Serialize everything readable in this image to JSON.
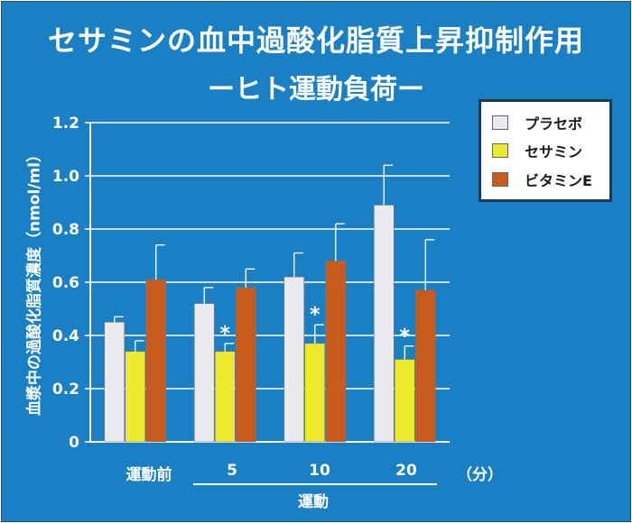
{
  "title_line1": "セサミンの血中過酸化脂質上昇抑制作用",
  "title_line2": "ーヒト運動負荷ー",
  "colors": {
    "background": "#1b7fc4",
    "placebo": "#e9e9ee",
    "sesamin": "#eeea30",
    "vitamin_e": "#c85a1e"
  },
  "chart_data": {
    "type": "bar",
    "ylabel": "血漿中の過酸化脂質濃度（nmol/ml）",
    "xlabel_unit": "（分）",
    "x_group_label": "運動",
    "categories": [
      "運動前",
      "5",
      "10",
      "20"
    ],
    "ylim": [
      0,
      1.2
    ],
    "yticks": [
      "0",
      "0.2",
      "0.4",
      "0.6",
      "0.8",
      "1.0",
      "1.2"
    ],
    "grid": true,
    "legend_position": "top-right",
    "series": [
      {
        "name": "プラセボ",
        "values": [
          0.45,
          0.52,
          0.62,
          0.89
        ],
        "errors": [
          0.02,
          0.06,
          0.09,
          0.15
        ]
      },
      {
        "name": "セサミン",
        "values": [
          0.34,
          0.34,
          0.37,
          0.31
        ],
        "errors": [
          0.04,
          0.03,
          0.07,
          0.05
        ]
      },
      {
        "name": "ビタミンE",
        "values": [
          0.61,
          0.58,
          0.68,
          0.57
        ],
        "errors": [
          0.13,
          0.07,
          0.14,
          0.19
        ]
      }
    ],
    "significance_marker": "*",
    "significance": [
      {
        "series": 1,
        "category": 1
      },
      {
        "series": 1,
        "category": 2
      },
      {
        "series": 1,
        "category": 3
      }
    ]
  }
}
